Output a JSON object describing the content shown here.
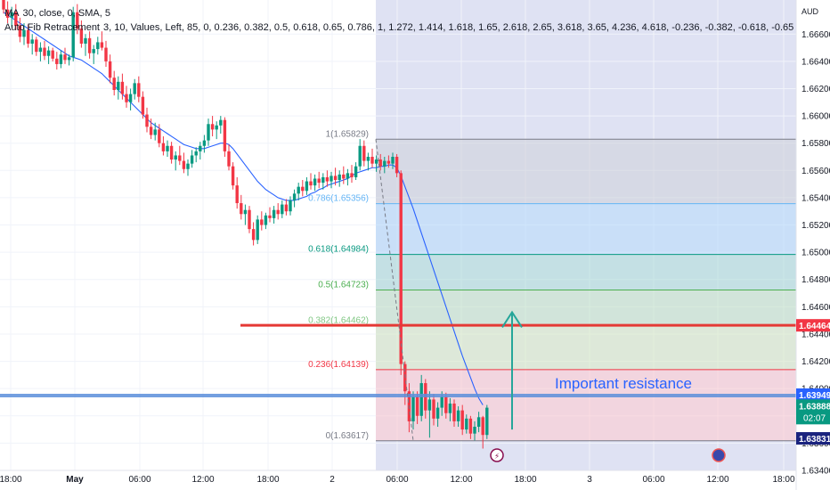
{
  "currency_label": "AUD",
  "indicators": {
    "ma_title": "MA",
    "ma_params": "30, close, 0, SMA, 5",
    "fib_title": "Auto Fib Retracement",
    "fib_params": "3, 10, Values, Left, 85, 0, 0.236, 0.382, 0.5, 0.618, 0.65, 0.786, 1, 1.272, 1.414, 1.618, 1.65, 2.618, 2.65, 3.618, 3.65, 4.236, 4.618, -0.236, -0.382, -0.618, -0.65"
  },
  "colors": {
    "bull": "#089981",
    "bear": "#f23645",
    "ma": "#2962ff",
    "resistance_line": "#5b8fdb",
    "red_line": "#e53935",
    "arrow": "#26a69a",
    "annotation_text": "#2962ff",
    "fib_1": "#787b86",
    "fib_0786": "#64b5f6",
    "fib_0618": "#089981",
    "fib_05": "#4caf50",
    "fib_0382": "#81c784",
    "fib_0236": "#f23645",
    "fib_0": "#787b86",
    "projection_bg": "#c5cae9"
  },
  "chart_data": {
    "type": "candlestick",
    "title": "",
    "ylim": [
      1.634,
      1.6685
    ],
    "y_ticks": [
      "1.66600",
      "1.66400",
      "1.66200",
      "1.66000",
      "1.65800",
      "1.65600",
      "1.65400",
      "1.65200",
      "1.65000",
      "1.64800",
      "1.64600",
      "1.64400",
      "1.64200",
      "1.64000",
      "1.63800",
      "1.63600",
      "1.63400"
    ],
    "x_ticks": [
      "18:00",
      "May",
      "06:00",
      "12:00",
      "18:00",
      "2",
      "06:00",
      "12:00",
      "18:00",
      "3",
      "06:00",
      "12:00",
      "18:00"
    ],
    "candles": [
      [
        1.6685,
        1.669,
        1.6675,
        1.6678
      ],
      [
        1.6678,
        1.6684,
        1.6668,
        1.6672
      ],
      [
        1.6672,
        1.668,
        1.6665,
        1.6676
      ],
      [
        1.6676,
        1.6682,
        1.6663,
        1.6666
      ],
      [
        1.6666,
        1.6672,
        1.6654,
        1.6658
      ],
      [
        1.6658,
        1.6668,
        1.6652,
        1.6663
      ],
      [
        1.6663,
        1.6667,
        1.665,
        1.6653
      ],
      [
        1.6653,
        1.666,
        1.6645,
        1.6656
      ],
      [
        1.6656,
        1.6658,
        1.6644,
        1.6647
      ],
      [
        1.6647,
        1.6654,
        1.664,
        1.665
      ],
      [
        1.665,
        1.6655,
        1.6641,
        1.6644
      ],
      [
        1.6644,
        1.6651,
        1.6638,
        1.6648
      ],
      [
        1.6648,
        1.665,
        1.664,
        1.6642
      ],
      [
        1.6642,
        1.6647,
        1.6634,
        1.6638
      ],
      [
        1.6638,
        1.6648,
        1.6635,
        1.6645
      ],
      [
        1.6645,
        1.665,
        1.6638,
        1.6641
      ],
      [
        1.6641,
        1.6645,
        1.6637,
        1.6643
      ],
      [
        1.6643,
        1.668,
        1.664,
        1.6676
      ],
      [
        1.6676,
        1.6682,
        1.666,
        1.6664
      ],
      [
        1.6664,
        1.667,
        1.665,
        1.6653
      ],
      [
        1.6653,
        1.666,
        1.6644,
        1.6657
      ],
      [
        1.6657,
        1.6662,
        1.6642,
        1.6646
      ],
      [
        1.6646,
        1.6652,
        1.6638,
        1.6649
      ],
      [
        1.6649,
        1.6658,
        1.6645,
        1.6654
      ],
      [
        1.6654,
        1.6662,
        1.6648,
        1.665
      ],
      [
        1.665,
        1.6655,
        1.6636,
        1.664
      ],
      [
        1.664,
        1.6645,
        1.6624,
        1.6628
      ],
      [
        1.6628,
        1.6633,
        1.6615,
        1.6619
      ],
      [
        1.6619,
        1.6629,
        1.6612,
        1.6625
      ],
      [
        1.6625,
        1.6631,
        1.6612,
        1.6616
      ],
      [
        1.6616,
        1.6622,
        1.6606,
        1.661
      ],
      [
        1.661,
        1.662,
        1.6604,
        1.6616
      ],
      [
        1.6616,
        1.6627,
        1.6612,
        1.6624
      ],
      [
        1.6624,
        1.6629,
        1.661,
        1.6614
      ],
      [
        1.6614,
        1.6618,
        1.6598,
        1.6601
      ],
      [
        1.6601,
        1.6606,
        1.6588,
        1.6592
      ],
      [
        1.6592,
        1.6598,
        1.6583,
        1.6586
      ],
      [
        1.6586,
        1.6595,
        1.6582,
        1.659
      ],
      [
        1.659,
        1.6594,
        1.6577,
        1.658
      ],
      [
        1.658,
        1.6585,
        1.6571,
        1.6574
      ],
      [
        1.6574,
        1.6582,
        1.657,
        1.6578
      ],
      [
        1.6578,
        1.6581,
        1.6565,
        1.6568
      ],
      [
        1.6568,
        1.6574,
        1.656,
        1.6571
      ],
      [
        1.6571,
        1.6578,
        1.6564,
        1.6567
      ],
      [
        1.6567,
        1.6573,
        1.6558,
        1.6561
      ],
      [
        1.6561,
        1.6568,
        1.6556,
        1.6565
      ],
      [
        1.6565,
        1.6575,
        1.6562,
        1.6571
      ],
      [
        1.6571,
        1.6577,
        1.6566,
        1.6574
      ],
      [
        1.6574,
        1.6581,
        1.6568,
        1.6578
      ],
      [
        1.6578,
        1.6586,
        1.6573,
        1.6582
      ],
      [
        1.6582,
        1.6598,
        1.6578,
        1.6594
      ],
      [
        1.6594,
        1.66,
        1.6585,
        1.659
      ],
      [
        1.659,
        1.6596,
        1.6583,
        1.6593
      ],
      [
        1.6593,
        1.66,
        1.6587,
        1.6597
      ],
      [
        1.6597,
        1.6599,
        1.657,
        1.6574
      ],
      [
        1.6574,
        1.6579,
        1.656,
        1.6563
      ],
      [
        1.6563,
        1.6566,
        1.6546,
        1.6549
      ],
      [
        1.6549,
        1.6555,
        1.6532,
        1.6536
      ],
      [
        1.6536,
        1.6542,
        1.6524,
        1.6528
      ],
      [
        1.6528,
        1.6535,
        1.652,
        1.6531
      ],
      [
        1.6531,
        1.6534,
        1.6514,
        1.6517
      ],
      [
        1.6517,
        1.6522,
        1.6505,
        1.6509
      ],
      [
        1.6509,
        1.6527,
        1.6506,
        1.6524
      ],
      [
        1.6524,
        1.653,
        1.6516,
        1.652
      ],
      [
        1.652,
        1.6529,
        1.6517,
        1.6527
      ],
      [
        1.6527,
        1.6533,
        1.6522,
        1.6525
      ],
      [
        1.6525,
        1.6534,
        1.6521,
        1.6531
      ],
      [
        1.6531,
        1.6536,
        1.6524,
        1.6528
      ],
      [
        1.6528,
        1.6538,
        1.6525,
        1.6535
      ],
      [
        1.6535,
        1.6539,
        1.6527,
        1.653
      ],
      [
        1.653,
        1.6541,
        1.6527,
        1.6538
      ],
      [
        1.6538,
        1.6546,
        1.6533,
        1.6543
      ],
      [
        1.6543,
        1.6551,
        1.6538,
        1.6548
      ],
      [
        1.6548,
        1.6553,
        1.6541,
        1.6545
      ],
      [
        1.6545,
        1.6555,
        1.6542,
        1.6552
      ],
      [
        1.6552,
        1.6558,
        1.6546,
        1.6549
      ],
      [
        1.6549,
        1.6557,
        1.6545,
        1.6554
      ],
      [
        1.6554,
        1.6559,
        1.6547,
        1.6551
      ],
      [
        1.6551,
        1.6558,
        1.6546,
        1.6555
      ],
      [
        1.6555,
        1.656,
        1.6548,
        1.6552
      ],
      [
        1.6552,
        1.6559,
        1.6547,
        1.6556
      ],
      [
        1.6556,
        1.6562,
        1.6549,
        1.6553
      ],
      [
        1.6553,
        1.656,
        1.6548,
        1.6557
      ],
      [
        1.6557,
        1.6563,
        1.655,
        1.6554
      ],
      [
        1.6554,
        1.6561,
        1.6549,
        1.6558
      ],
      [
        1.6558,
        1.6564,
        1.6551,
        1.6555
      ],
      [
        1.6555,
        1.6566,
        1.6553,
        1.6563
      ],
      [
        1.6563,
        1.6583,
        1.656,
        1.6578
      ],
      [
        1.6578,
        1.6582,
        1.6563,
        1.6567
      ],
      [
        1.6567,
        1.6573,
        1.656,
        1.657
      ],
      [
        1.657,
        1.6576,
        1.6562,
        1.6565
      ],
      [
        1.6565,
        1.6571,
        1.6559,
        1.6568
      ],
      [
        1.6568,
        1.6572,
        1.656,
        1.6563
      ],
      [
        1.6563,
        1.657,
        1.6558,
        1.6567
      ],
      [
        1.6567,
        1.6571,
        1.6562,
        1.6565
      ],
      [
        1.6565,
        1.6573,
        1.6561,
        1.657
      ],
      [
        1.657,
        1.6572,
        1.6555,
        1.6558
      ],
      [
        1.6558,
        1.656,
        1.641,
        1.6418
      ],
      [
        1.6418,
        1.642,
        1.6388,
        1.6398
      ],
      [
        1.6398,
        1.6404,
        1.6368,
        1.6376
      ],
      [
        1.6376,
        1.6398,
        1.637,
        1.6394
      ],
      [
        1.6394,
        1.6398,
        1.6374,
        1.638
      ],
      [
        1.638,
        1.641,
        1.6376,
        1.6404
      ],
      [
        1.6404,
        1.6407,
        1.6378,
        1.6384
      ],
      [
        1.6384,
        1.6398,
        1.6364,
        1.6392
      ],
      [
        1.6392,
        1.6396,
        1.6373,
        1.6378
      ],
      [
        1.6378,
        1.639,
        1.6372,
        1.6386
      ],
      [
        1.6386,
        1.6398,
        1.638,
        1.6394
      ],
      [
        1.6394,
        1.6397,
        1.6378,
        1.6382
      ],
      [
        1.6382,
        1.6393,
        1.6376,
        1.6389
      ],
      [
        1.6389,
        1.6392,
        1.6372,
        1.6376
      ],
      [
        1.6376,
        1.6387,
        1.6372,
        1.6384
      ],
      [
        1.6384,
        1.6388,
        1.6366,
        1.637
      ],
      [
        1.637,
        1.6381,
        1.6367,
        1.6378
      ],
      [
        1.6378,
        1.638,
        1.6363,
        1.6367
      ],
      [
        1.6367,
        1.6376,
        1.6362,
        1.6372
      ],
      [
        1.6372,
        1.6383,
        1.6368,
        1.6379
      ],
      [
        1.6379,
        1.638,
        1.6356,
        1.6366
      ],
      [
        1.6366,
        1.6388,
        1.6363,
        1.6386
      ]
    ],
    "ma_values": [
      1.6676,
      1.6674,
      1.6672,
      1.667,
      1.6668,
      1.6666,
      1.6664,
      1.6662,
      1.666,
      1.6658,
      1.6656,
      1.6654,
      1.6652,
      1.665,
      1.6648,
      1.6646,
      1.6644,
      1.6643,
      1.6642,
      1.6641,
      1.6639,
      1.6637,
      1.6635,
      1.6633,
      1.6631,
      1.6628,
      1.6625,
      1.6622,
      1.6619,
      1.6616,
      1.6613,
      1.661,
      1.6607,
      1.6604,
      1.6601,
      1.6598,
      1.6595,
      1.6593,
      1.6591,
      1.6589,
      1.6587,
      1.6585,
      1.6583,
      1.6581,
      1.6579,
      1.6578,
      1.6577,
      1.6576,
      1.6576,
      1.6576,
      1.6577,
      1.6578,
      1.6579,
      1.658,
      1.658,
      1.6579,
      1.6576,
      1.6572,
      1.6568,
      1.6564,
      1.656,
      1.6556,
      1.6552,
      1.6549,
      1.6546,
      1.6544,
      1.6542,
      1.654,
      1.6539,
      1.6538,
      1.6538,
      1.6538,
      1.6539,
      1.654,
      1.6541,
      1.6543,
      1.6544,
      1.6546,
      1.6547,
      1.6549,
      1.655,
      1.6551,
      1.6552,
      1.6553,
      1.6554,
      1.6556,
      1.6558,
      1.6559,
      1.656,
      1.6561,
      1.6562,
      1.6562,
      1.6563,
      1.6563,
      1.6564,
      1.6564,
      1.6562,
      1.6556,
      1.6548,
      1.654,
      1.6532,
      1.6523,
      1.6514,
      1.6505,
      1.6496,
      1.6487,
      1.6478,
      1.6469,
      1.646,
      1.6451,
      1.6442,
      1.6433,
      1.6424,
      1.6416,
      1.6408,
      1.64,
      1.6393,
      1.6388
    ],
    "fib_levels": [
      {
        "ratio": "1",
        "value": 1.65829,
        "label": "1(1.65829)"
      },
      {
        "ratio": "0.786",
        "value": 1.65356,
        "label": "0.786(1.65356)"
      },
      {
        "ratio": "0.618",
        "value": 1.64984,
        "label": "0.618(1.64984)"
      },
      {
        "ratio": "0.5",
        "value": 1.64723,
        "label": "0.5(1.64723)"
      },
      {
        "ratio": "0.382",
        "value": 1.64462,
        "label": "0.382(1.64462)"
      },
      {
        "ratio": "0.236",
        "value": 1.64139,
        "label": "0.236(1.64139)"
      },
      {
        "ratio": "0",
        "value": 1.63617,
        "label": "0(1.63617)"
      }
    ],
    "price_labels": [
      {
        "value": 1.64464,
        "text": "1.64464",
        "kind": "red"
      },
      {
        "value": 1.63949,
        "text": "1.63949",
        "kind": "blue"
      },
      {
        "value": 1.63888,
        "text": "1.63888",
        "kind": "green"
      },
      {
        "value": 1.63831,
        "text": "1.63831",
        "kind": "navy"
      }
    ],
    "countdown": "02:07",
    "annotation": {
      "text": "Important resistance",
      "value": 1.6395
    },
    "horizontal_lines": [
      {
        "value": 1.64464,
        "kind": "red"
      },
      {
        "value": 1.63949,
        "kind": "blue"
      }
    ]
  }
}
